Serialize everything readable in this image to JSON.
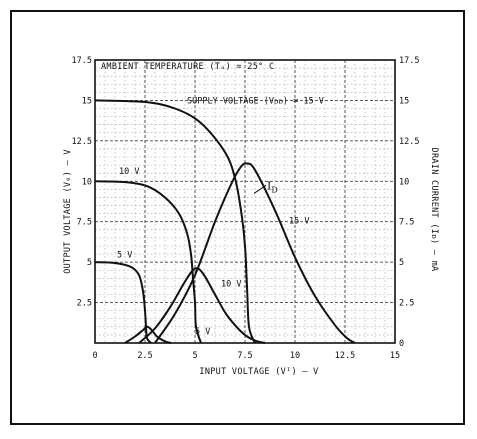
{
  "chart_data": {
    "type": "line",
    "title": "AMBIENT TEMPERATURE (Tₐ) = 25° C",
    "xlabel": "INPUT VOLTAGE (Vᴵ) — V",
    "ylabel": "OUTPUT VOLTAGE (V₀) — V",
    "y2label": "DRAIN CURRENT (Iᴅ) — mA",
    "xlim": [
      0,
      15
    ],
    "ylim": [
      0,
      17.5
    ],
    "y2lim": [
      0,
      17.5
    ],
    "x_ticks": [
      "0",
      "2.5",
      "5",
      "7.5",
      "10",
      "12.5",
      "15"
    ],
    "y_ticks": [
      "2.5",
      "5",
      "7.5",
      "10",
      "12.5",
      "15",
      "17.5"
    ],
    "y_tick_values": [
      2.5,
      5,
      7.5,
      10,
      12.5,
      15,
      17.5
    ],
    "y2_ticks": [
      "0",
      "2.5",
      "5",
      "7.5",
      "10",
      "12.5",
      "15",
      "17.5"
    ],
    "y2_tick_values": [
      0,
      2.5,
      5,
      7.5,
      10,
      12.5,
      15,
      17.5
    ],
    "grid": true,
    "annotations": {
      "supply": "SUPPLY VOLTAGE (Vᴅᴅ) = 15 V",
      "id_label": "I",
      "id_sub": "D",
      "v10_top": "10 V",
      "v5_top": "5 V",
      "v15_mid": "15 V",
      "v10_mid": "10 V",
      "v5_bot": "5 V"
    },
    "series": [
      {
        "kind": "output",
        "x": [
          0,
          2.5,
          4,
          5.3,
          6.5,
          7.0,
          7.3,
          7.5,
          7.6,
          7.7,
          8.0
        ],
        "y": [
          15,
          14.9,
          14.5,
          13.6,
          11.8,
          10.2,
          8.2,
          6.0,
          3.5,
          1.0,
          0
        ]
      },
      {
        "kind": "output",
        "x": [
          0,
          1.5,
          2.6,
          3.5,
          4.2,
          4.6,
          4.8,
          4.9,
          5.0,
          5.05,
          5.3
        ],
        "y": [
          10,
          9.95,
          9.7,
          9.0,
          8.0,
          6.8,
          5.5,
          4.0,
          2.5,
          1.0,
          0
        ]
      },
      {
        "kind": "output",
        "x": [
          0,
          1.0,
          1.8,
          2.2,
          2.4,
          2.5,
          2.55,
          2.6,
          2.8
        ],
        "y": [
          5,
          4.95,
          4.7,
          4.2,
          3.2,
          2.0,
          1.0,
          0.3,
          0
        ]
      },
      {
        "kind": "current",
        "x": [
          3.0,
          4.0,
          5.0,
          6.0,
          6.8,
          7.3,
          7.6,
          8.0,
          9.0,
          10.0,
          11.0,
          12.0,
          12.6,
          13.0
        ],
        "y": [
          0,
          1.8,
          4.2,
          7.5,
          9.8,
          10.9,
          11.1,
          10.7,
          8.2,
          5.3,
          2.9,
          1.1,
          0.3,
          0
        ]
      },
      {
        "kind": "current",
        "x": [
          2.2,
          3.0,
          3.8,
          4.5,
          5.0,
          5.4,
          6.0,
          6.5,
          7.0,
          7.5,
          8.0,
          8.5
        ],
        "y": [
          0,
          0.9,
          2.3,
          3.8,
          4.6,
          4.3,
          3.0,
          1.9,
          1.1,
          0.5,
          0.15,
          0
        ]
      },
      {
        "kind": "current",
        "x": [
          1.5,
          2.0,
          2.4,
          2.6,
          2.8,
          3.1,
          3.5,
          3.8
        ],
        "y": [
          0,
          0.4,
          0.8,
          1.0,
          0.85,
          0.4,
          0.1,
          0
        ]
      }
    ]
  }
}
